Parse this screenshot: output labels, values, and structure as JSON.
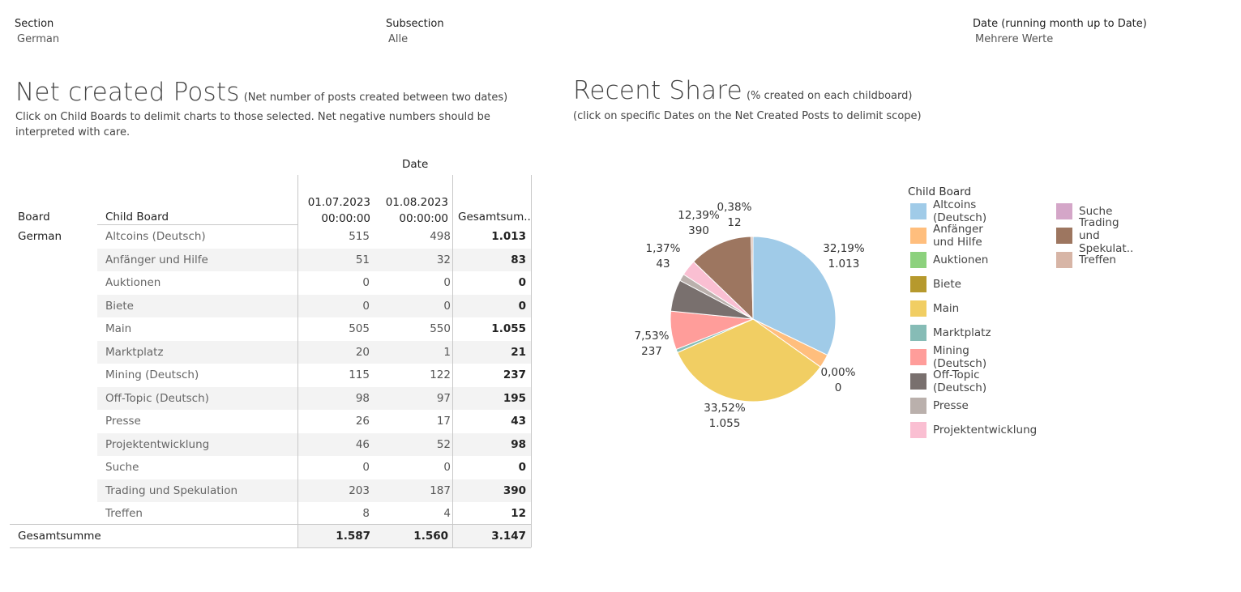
{
  "filters": [
    {
      "label": "Section",
      "value": "German"
    },
    {
      "label": "Subsection",
      "value": "Alle"
    },
    {
      "label": "Date (running month up to Date)",
      "value": "Mehrere Werte"
    }
  ],
  "left": {
    "title": "Net created Posts",
    "subtitle": "(Net number of posts created between two dates)",
    "desc1": "Click on Child Boards to delimit charts to those selected. Net negative numbers should be",
    "desc2": "interpreted  with care."
  },
  "right": {
    "title": "Recent Share",
    "subtitle": "(% created on each childboard)",
    "desc": "(click on specific Dates on the Net Created Posts to delimit scope)"
  },
  "table": {
    "date_header": "Date",
    "col_board": "Board",
    "col_child": "Child Board",
    "col_d1_line1": "01.07.2023",
    "col_d1_line2": "00:00:00",
    "col_d2_line1": "01.08.2023",
    "col_d2_line2": "00:00:00",
    "col_total": "Gesamtsum..",
    "board": "German",
    "rows": [
      {
        "child": "Altcoins (Deutsch)",
        "d1": "515",
        "d2": "498",
        "total": "1.013"
      },
      {
        "child": "Anfänger und Hilfe",
        "d1": "51",
        "d2": "32",
        "total": "83"
      },
      {
        "child": "Auktionen",
        "d1": "0",
        "d2": "0",
        "total": "0"
      },
      {
        "child": "Biete",
        "d1": "0",
        "d2": "0",
        "total": "0"
      },
      {
        "child": "Main",
        "d1": "505",
        "d2": "550",
        "total": "1.055"
      },
      {
        "child": "Marktplatz",
        "d1": "20",
        "d2": "1",
        "total": "21"
      },
      {
        "child": "Mining (Deutsch)",
        "d1": "115",
        "d2": "122",
        "total": "237"
      },
      {
        "child": "Off-Topic (Deutsch)",
        "d1": "98",
        "d2": "97",
        "total": "195"
      },
      {
        "child": "Presse",
        "d1": "26",
        "d2": "17",
        "total": "43"
      },
      {
        "child": "Projektentwicklung",
        "d1": "46",
        "d2": "52",
        "total": "98"
      },
      {
        "child": "Suche",
        "d1": "0",
        "d2": "0",
        "total": "0"
      },
      {
        "child": "Trading und Spekulation",
        "d1": "203",
        "d2": "187",
        "total": "390"
      },
      {
        "child": "Treffen",
        "d1": "8",
        "d2": "4",
        "total": "12"
      }
    ],
    "grand_label": "Gesamtsumme",
    "grand_d1": "1.587",
    "grand_d2": "1.560",
    "grand_total": "3.147"
  },
  "legend": {
    "title": "Child Board",
    "items": [
      {
        "label": "Altcoins (Deutsch)",
        "color": "#a0cbe8"
      },
      {
        "label": "Anfänger und Hilfe",
        "color": "#ffbe7d"
      },
      {
        "label": "Auktionen",
        "color": "#8cd17d"
      },
      {
        "label": "Biete",
        "color": "#b6992d"
      },
      {
        "label": "Main",
        "color": "#f1ce63"
      },
      {
        "label": "Marktplatz",
        "color": "#86bcb6"
      },
      {
        "label": "Mining (Deutsch)",
        "color": "#ff9d9a"
      },
      {
        "label": "Off-Topic (Deutsch)",
        "color": "#79706e"
      },
      {
        "label": "Presse",
        "color": "#bab0ac"
      },
      {
        "label": "Projektentwicklung",
        "color": "#fabfd2"
      },
      {
        "label": "Suche",
        "color": "#d4a6c8"
      },
      {
        "label": "Trading und Spekulat..",
        "color": "#9d7660"
      },
      {
        "label": "Treffen",
        "color": "#d7b5a6"
      }
    ]
  },
  "chart_data": {
    "type": "pie",
    "title": "Recent Share",
    "slices": [
      {
        "name": "Altcoins (Deutsch)",
        "value": 1013,
        "color": "#a0cbe8"
      },
      {
        "name": "Anfänger und Hilfe",
        "value": 83,
        "color": "#ffbe7d"
      },
      {
        "name": "Auktionen",
        "value": 0,
        "color": "#8cd17d"
      },
      {
        "name": "Biete",
        "value": 0,
        "color": "#b6992d"
      },
      {
        "name": "Main",
        "value": 1055,
        "color": "#f1ce63"
      },
      {
        "name": "Marktplatz",
        "value": 21,
        "color": "#86bcb6"
      },
      {
        "name": "Mining (Deutsch)",
        "value": 237,
        "color": "#ff9d9a"
      },
      {
        "name": "Off-Topic (Deutsch)",
        "value": 195,
        "color": "#79706e"
      },
      {
        "name": "Presse",
        "value": 43,
        "color": "#bab0ac"
      },
      {
        "name": "Projektentwicklung",
        "value": 98,
        "color": "#fabfd2"
      },
      {
        "name": "Suche",
        "value": 0,
        "color": "#d4a6c8"
      },
      {
        "name": "Trading und Spekulation",
        "value": 390,
        "color": "#9d7660"
      },
      {
        "name": "Treffen",
        "value": 12,
        "color": "#d7b5a6"
      }
    ],
    "labels": [
      {
        "slice": "Altcoins (Deutsch)",
        "pct": "32,19%",
        "val": "1.013"
      },
      {
        "slice": "Auktionen",
        "pct": "0,00%",
        "val": "0"
      },
      {
        "slice": "Main",
        "pct": "33,52%",
        "val": "1.055"
      },
      {
        "slice": "Mining (Deutsch)",
        "pct": "7,53%",
        "val": "237"
      },
      {
        "slice": "Presse",
        "pct": "1,37%",
        "val": "43"
      },
      {
        "slice": "Trading und Spekulation",
        "pct": "12,39%",
        "val": "390"
      },
      {
        "slice": "Treffen",
        "pct": "0,38%",
        "val": "12"
      }
    ]
  }
}
